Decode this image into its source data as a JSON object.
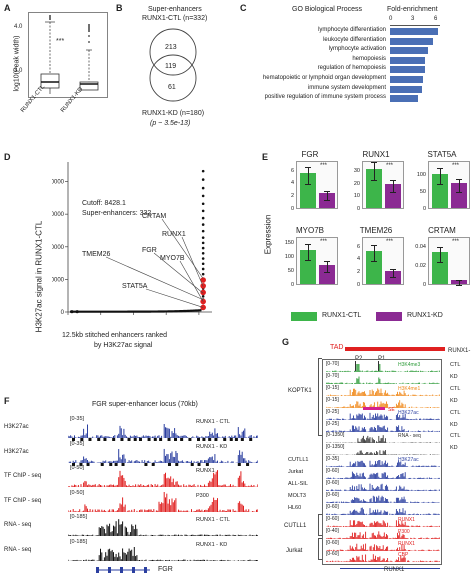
{
  "panels": {
    "a": {
      "letter": "A",
      "ylabel": "log10(Peak width)",
      "sig": "***",
      "yticks": [
        "2.5",
        "3.0",
        "3.5",
        "4.0"
      ],
      "groups": [
        "RUNX1-CTL",
        "RUNX1-KD"
      ]
    },
    "b": {
      "letter": "B",
      "title_line1": "Super-enhancers",
      "title_line2": "RUNX1-CTL (n=332)",
      "left_only": "213",
      "overlap": "119",
      "right_only": "61",
      "footer_line1": "RUNX1-KD (n=180)",
      "footer_line2": "(p ~ 3.5e-13)"
    },
    "c": {
      "letter": "C",
      "header_left": "GO Biological Process",
      "header_right": "Fold-enrichment",
      "ticks": [
        "0",
        "3",
        "6"
      ],
      "terms": [
        {
          "label": "lymphocyte differentiation",
          "fold": 6.2
        },
        {
          "label": "leukocyte differentiation",
          "fold": 5.6
        },
        {
          "label": "lymphocyte activation",
          "fold": 5.0
        },
        {
          "label": "hemopoiesis",
          "fold": 4.6
        },
        {
          "label": "regulation of hemopoiesis",
          "fold": 4.5
        },
        {
          "label": "hematopoietic or lymphoid organ development",
          "fold": 4.3
        },
        {
          "label": "immune system development",
          "fold": 4.1
        },
        {
          "label": "positive regulation of immune system process",
          "fold": 3.6
        }
      ]
    },
    "d": {
      "letter": "D",
      "ylabel": "H3K27ac signal in RUNX1-CTL",
      "xlabel_line1": "12.5kb stitched enhancers ranked",
      "xlabel_line2": "by H3K27ac signal",
      "cutoff": "Cutoff: 8428.1",
      "se_count": "Super-enhancers: 332",
      "yticks": [
        "0",
        "50000",
        "100000",
        "150000",
        "200000"
      ],
      "xticks": [
        "0",
        "5000",
        "10000",
        "15000",
        "20000"
      ],
      "genes": [
        "CRTAM",
        "RUNX1",
        "FGR",
        "TMEM26",
        "MYO7B",
        "STAT5A"
      ]
    },
    "e": {
      "letter": "E",
      "ylabel": "Expression",
      "genes": [
        {
          "name": "FGR",
          "ctl": 5.4,
          "kd": 2.3,
          "yticks": [
            "0",
            "2",
            "4",
            "6"
          ],
          "ymax": 7.5,
          "sig": "***"
        },
        {
          "name": "RUNX1",
          "ctl": 31,
          "kd": 19,
          "yticks": [
            "0",
            "10",
            "20",
            "30"
          ],
          "ymax": 38,
          "sig": "***"
        },
        {
          "name": "STAT5A",
          "ctl": 98,
          "kd": 72,
          "yticks": [
            "0",
            "50",
            "100"
          ],
          "ymax": 140,
          "sig": "***"
        },
        {
          "name": "MYO7B",
          "ctl": 120,
          "kd": 68,
          "yticks": [
            "0",
            "50",
            "100",
            "150"
          ],
          "ymax": 170,
          "sig": "***"
        },
        {
          "name": "TMEM26",
          "ctl": 5.2,
          "kd": 2.0,
          "yticks": [
            "0",
            "2",
            "4",
            "6"
          ],
          "ymax": 7.5,
          "sig": "***"
        },
        {
          "name": "CRTAM",
          "ctl": 0.033,
          "kd": 0.004,
          "yticks": [
            "0",
            "0.02",
            "0.04"
          ],
          "ymax": 0.05,
          "sig": "***"
        }
      ],
      "legend_ctl": "RUNX1-CTL",
      "legend_kd": "RUNX1-KD",
      "color_ctl": "#3db54a",
      "color_kd": "#8b2a93"
    },
    "f": {
      "letter": "F",
      "title": "FGR super-enhancer locus (70kb)",
      "gene": "FGR",
      "tracks": [
        {
          "label": "H3K27ac",
          "range": "[0-35]",
          "tag": "RUNX1 - CTL",
          "color": "#2b3fa0"
        },
        {
          "label": "H3K27ac",
          "range": "[0-35]",
          "tag": "RUNX1 - KD",
          "color": "#2b3fa0"
        },
        {
          "label": "TF ChIP - seq",
          "range": "[0-50]",
          "tag": "RUNX1",
          "color": "#e02020"
        },
        {
          "label": "TF ChIP - seq",
          "range": "[0-50]",
          "tag": "P300",
          "color": "#e02020"
        },
        {
          "label": "RNA - seq",
          "range": "[0-185]",
          "tag": "RUNX1 - CTL",
          "color": "#111111"
        },
        {
          "label": "RNA - seq",
          "range": "[0-185]",
          "tag": "RUNX1 - KD",
          "color": "#111111"
        }
      ]
    },
    "g": {
      "letter": "G",
      "tad": "TAD",
      "p2": "P2",
      "p1": "P1",
      "se": "SE",
      "gene": "RUNX1",
      "runx1_label": "RUNX1-",
      "groups": {
        "koptk1": "KOPTK1",
        "cutll1": "CUTLL1",
        "jurkat": "Jurkat"
      },
      "tracks": [
        {
          "range": "[0-70]",
          "name": "H3K4me3",
          "side": "CTL",
          "color": "#2e9c3a"
        },
        {
          "range": "[0-70]",
          "name": "",
          "side": "KD",
          "color": "#2e9c3a"
        },
        {
          "range": "[0-15]",
          "name": "H3K4me1",
          "side": "CTL",
          "color": "#f08a1c"
        },
        {
          "range": "[0-15]",
          "name": "",
          "side": "KD",
          "color": "#f08a1c"
        },
        {
          "range": "[0-25]",
          "name": "H3K27ac",
          "side": "CTL",
          "color": "#2b3fa0"
        },
        {
          "range": "[0-25]",
          "name": "",
          "side": "KD",
          "color": "#2b3fa0"
        },
        {
          "range": "[0-1350]",
          "name": "RNA - seq",
          "side": "CTL",
          "color": "#333333"
        },
        {
          "range": "[0-1350]",
          "name": "",
          "side": "KD",
          "color": "#333333"
        },
        {
          "range": "[0-35]",
          "name": "H3K27ac",
          "side": "",
          "cell": "CUTLL1",
          "color": "#2b3fa0"
        },
        {
          "range": "[0-60]",
          "name": "",
          "side": "",
          "cell": "Jurkat",
          "color": "#2b3fa0"
        },
        {
          "range": "[0-60]",
          "name": "",
          "side": "",
          "cell": "ALL-SIL",
          "color": "#2b3fa0"
        },
        {
          "range": "[0-60]",
          "name": "",
          "side": "",
          "cell": "MOLT3",
          "color": "#2b3fa0"
        },
        {
          "range": "[0-60]",
          "name": "",
          "side": "",
          "cell": "HL60",
          "color": "#2b3fa0"
        },
        {
          "range": "[0-60]",
          "name": "RUNX1",
          "side": "",
          "color": "#e02020"
        },
        {
          "range": "[0-40]",
          "name": "P300",
          "side": "",
          "color": "#e02020"
        },
        {
          "range": "[0-60]",
          "name": "RUNX1",
          "side": "",
          "color": "#e02020"
        },
        {
          "range": "[0-60]",
          "name": "CBP",
          "side": "",
          "color": "#e02020"
        }
      ]
    }
  }
}
